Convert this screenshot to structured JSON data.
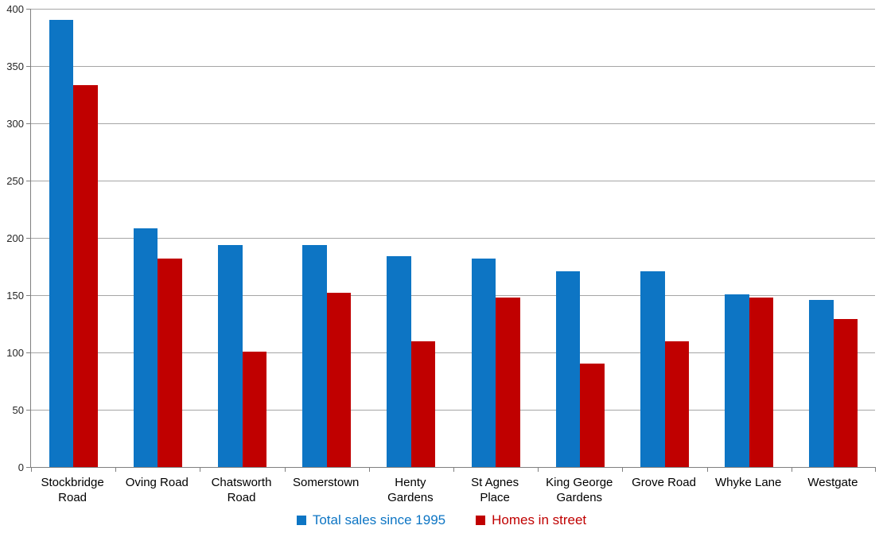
{
  "chart_data": {
    "type": "bar",
    "title": "",
    "xlabel": "",
    "ylabel": "",
    "categories": [
      "Stockbridge Road",
      "Oving Road",
      "Chatsworth Road",
      "Somerstown",
      "Henty Gardens",
      "St Agnes Place",
      "King George Gardens",
      "Grove Road",
      "Whyke Lane",
      "Westgate"
    ],
    "series": [
      {
        "name": "Total sales since 1995",
        "color": "#0D75C4",
        "values": [
          390,
          208,
          194,
          194,
          184,
          182,
          171,
          171,
          151,
          146
        ]
      },
      {
        "name": "Homes in street",
        "color": "#C00000",
        "values": [
          333,
          182,
          101,
          152,
          110,
          148,
          90,
          110,
          148,
          129
        ]
      }
    ],
    "ylim": [
      0,
      400
    ],
    "yticks": [
      0,
      50,
      100,
      150,
      200,
      250,
      300,
      350,
      400
    ],
    "grid": true,
    "legend_position": "bottom"
  },
  "colors": {
    "background": "#FFFFFF",
    "gridline": "#A6A6A6",
    "axis": "#808080",
    "y_tick_label": "#262626",
    "category_label": "#000000"
  }
}
